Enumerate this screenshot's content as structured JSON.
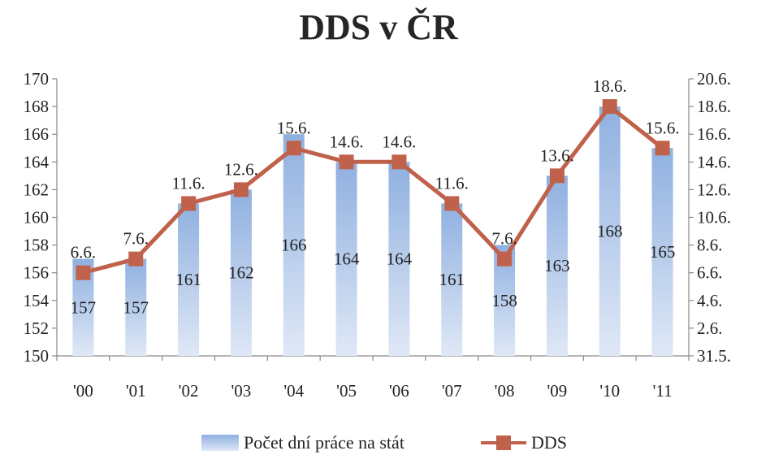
{
  "chart_data": {
    "type": "bar+line",
    "title": "DDS v ČR",
    "categories": [
      "'00",
      "'01",
      "'02",
      "'03",
      "'04",
      "'05",
      "'06",
      "'07",
      "'08",
      "'09",
      "'10",
      "'11"
    ],
    "series": [
      {
        "name": "Počet dní práce na stát",
        "type": "bar",
        "axis": "left",
        "values": [
          157,
          157,
          161,
          162,
          166,
          164,
          164,
          161,
          158,
          163,
          168,
          165
        ],
        "labels": [
          "157",
          "157",
          "161",
          "162",
          "166",
          "164",
          "164",
          "161",
          "158",
          "163",
          "168",
          "165"
        ]
      },
      {
        "name": "DDS",
        "type": "line",
        "axis": "right",
        "values": [
          6.6,
          7.6,
          11.6,
          12.6,
          15.6,
          14.6,
          14.6,
          11.6,
          7.6,
          13.6,
          18.6,
          15.6
        ],
        "labels": [
          "6.6.",
          "7.6.",
          "11.6.",
          "12.6.",
          "15.6.",
          "14.6.",
          "14.6.",
          "11.6.",
          "7.6.",
          "13.6.",
          "18.6.",
          "15.6."
        ]
      }
    ],
    "left_axis": {
      "ylim": [
        150,
        170
      ],
      "ticks": [
        "150",
        "152",
        "154",
        "156",
        "158",
        "160",
        "162",
        "164",
        "166",
        "168",
        "170"
      ]
    },
    "right_axis": {
      "ylim": [
        0.6,
        20.6
      ],
      "ticks": [
        "31.5.",
        "2.6.",
        "4.6.",
        "6.6.",
        "8.6.",
        "10.6.",
        "12.6.",
        "14.6.",
        "16.6.",
        "18.6.",
        "20.6."
      ]
    },
    "colors": {
      "bar_top": "#8fb0e0",
      "bar_bottom": "#dfe8f6",
      "line": "#c0614b"
    },
    "legend": {
      "position": "bottom"
    },
    "grid": false
  }
}
